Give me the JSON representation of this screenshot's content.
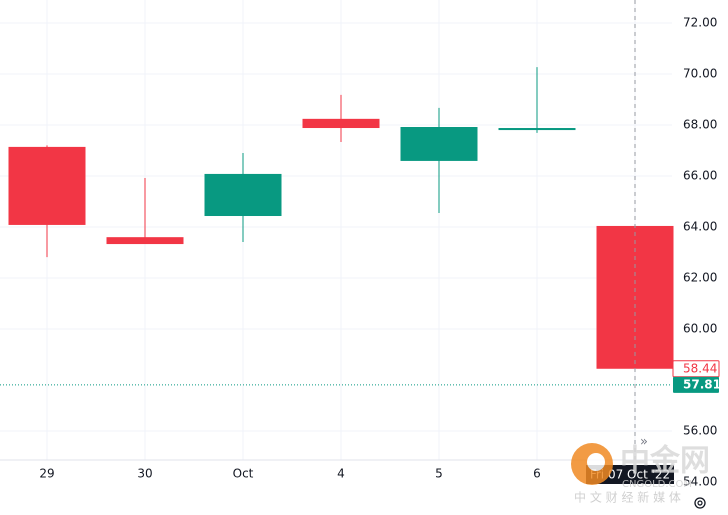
{
  "chart_data": {
    "type": "candlestick",
    "categories": [
      "29",
      "30",
      "Oct",
      "4",
      "5",
      "6",
      null
    ],
    "crosshair_label": "Fri 07 Oct '22",
    "open": [
      67.14,
      63.6,
      64.43,
      68.24,
      66.59,
      67.8,
      64.04
    ],
    "high": [
      67.2,
      65.92,
      66.9,
      69.18,
      68.67,
      70.27,
      64.04
    ],
    "low": [
      62.82,
      63.33,
      63.41,
      67.33,
      64.55,
      67.69,
      58.44
    ],
    "close": [
      64.08,
      63.33,
      66.08,
      67.88,
      67.92,
      67.88,
      58.44
    ],
    "up_color": "#089981",
    "down_color": "#f23645",
    "ylim": [
      54,
      72.9
    ],
    "yticks": [
      {
        "value": 72,
        "label": "72.00"
      },
      {
        "value": 70,
        "label": "70.00"
      },
      {
        "value": 68,
        "label": "68.00"
      },
      {
        "value": 66,
        "label": "66.00"
      },
      {
        "value": 64,
        "label": "64.00"
      },
      {
        "value": 62,
        "label": "62.00"
      },
      {
        "value": 60,
        "label": "60.00"
      },
      {
        "value": 56,
        "label": "56.00"
      },
      {
        "value": 54,
        "label": "54.00"
      }
    ],
    "price_lines": [
      {
        "value": 58.44,
        "color": "#f23645",
        "style": "label-only"
      },
      {
        "value": 57.81,
        "color": "#089981",
        "style": "dotted"
      }
    ],
    "grid": true,
    "watermark": {
      "title": "中金网",
      "site": "CNGOLD.COM",
      "slogan": "中 文 财 经 新 媒 体"
    }
  }
}
